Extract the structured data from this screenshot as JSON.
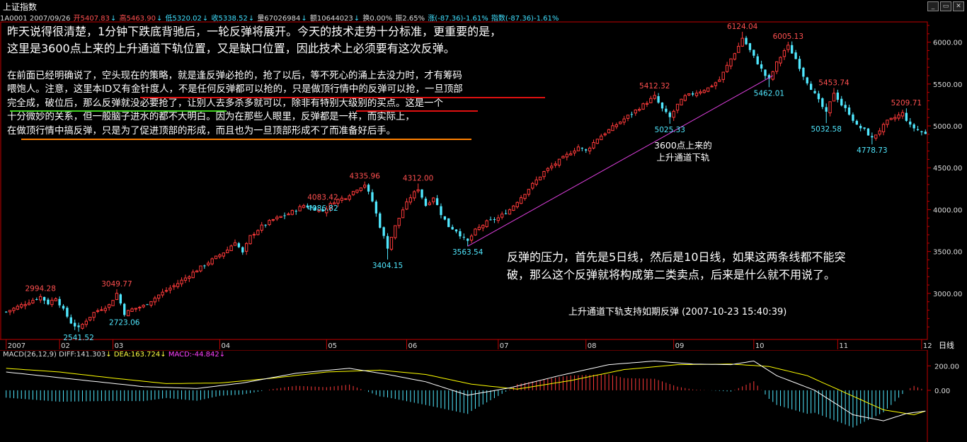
{
  "window": {
    "title": "上证指数"
  },
  "infobar": {
    "code_date": "1A0001 2007/09/26",
    "open": "开5407.83",
    "high": "高5463.90",
    "low": "低5320.02",
    "close": "收5338.52",
    "volume": "量67026984",
    "amount": "额10644023",
    "turnover": "换0.00%",
    "amplitude": "振2.65%",
    "change": "涨(-87.36)-1.61%",
    "index_change": "指数(-87.36)-1.61%"
  },
  "notes": {
    "note1_line1": "昨天说得很清楚，1分钟下跌底背驰后，一轮反弹将展开。今天的技术走势十分标准，更重要的是，",
    "note1_line2": "这里是3600点上来的上升通道下轨位置，又是缺口位置，因此技术上必须要有这次反弹。",
    "note2_line1": "在前面已经明确说了，空头现在的策略，就是逢反弹必抢的，抢了以后，等不死心的涌上去没力时，才有筹码",
    "note2_line2": "喂饱人。注意，这里本ID又有金针度人，不是任何反弹都可以抢的，只是做顶行情中的反弹可以抢，一旦顶部",
    "note2_line3": "完全成，破位后，那么反弹就没必要抢了，让别人去多杀多就可以，除非有特别大级别的买点。这是一个",
    "note2_line4": "十分微妙的关系，但一般脑子进水的都不大明白。因为在那些人眼里，反弹都是一样，而实际上，",
    "note2_line5": "在做顶行情中搞反弹，只是为了促进顶部的形成，而且也为一旦顶部形成不了而准备好后手。",
    "note3_line1": "反弹的压力，首先是5日线，然后是10日线，如果这两条线都不能突",
    "note3_line2": "破，那么这个反弹就将构成第二类卖点，后来是什么就不用说了。",
    "channel_line1": "3600点上来的",
    "channel_line2": "上升通道下轨",
    "caption": "上升通道下轨支持如期反弹  (2007-10-23 15:40:39)"
  },
  "macd_header": {
    "name": "MACD(26,12,9)",
    "diff": "DIFF:141.303",
    "dea": "DEA:163.724",
    "macd": "MACD:-44.842"
  },
  "period_button": "日线",
  "colors": {
    "up": "#ff3a3a",
    "down": "#50e8ff",
    "axis": "#c00000",
    "diff": "#ffffff",
    "dea": "#ffff00",
    "channel": "#e040e0"
  },
  "chart_data": {
    "type": "candlestick",
    "title": "上证指数 日线",
    "ylim": [
      2450,
      6250
    ],
    "y_ticks": [
      3000,
      3500,
      4000,
      4500,
      5000,
      5500,
      6000
    ],
    "y_tick_labels": [
      "3000.00",
      "3500.00",
      "4000.00",
      "4500.00",
      "5000.00",
      "5500.00",
      "6000.00"
    ],
    "x_month_labels": [
      "2007",
      "02",
      "03",
      "04",
      "05",
      "06",
      "07",
      "08",
      "09",
      "10",
      "11",
      "12"
    ],
    "x_month_day_index": [
      0,
      14,
      28,
      56,
      84,
      105,
      129,
      152,
      175,
      196,
      218,
      240
    ],
    "price_annotations": [
      {
        "label": "2994.28",
        "day": 9,
        "value": 2994.28,
        "type": "high"
      },
      {
        "label": "2541.52",
        "day": 19,
        "value": 2541.52,
        "type": "low"
      },
      {
        "label": "3049.77",
        "day": 29,
        "value": 3049.77,
        "type": "high"
      },
      {
        "label": "2723.06",
        "day": 31,
        "value": 2723.06,
        "type": "low"
      },
      {
        "label": "4083.42",
        "day": 83,
        "value": 4083.42,
        "type": "high"
      },
      {
        "label": "4086.82",
        "day": 83,
        "value": 4086.82,
        "type": "low"
      },
      {
        "label": "4335.96",
        "day": 94,
        "value": 4335.96,
        "type": "high"
      },
      {
        "label": "3404.15",
        "day": 100,
        "value": 3404.15,
        "type": "low"
      },
      {
        "label": "4312.00",
        "day": 108,
        "value": 4312.0,
        "type": "high"
      },
      {
        "label": "3563.54",
        "day": 121,
        "value": 3563.54,
        "type": "low"
      },
      {
        "label": "5412.32",
        "day": 170,
        "value": 5412.32,
        "type": "high"
      },
      {
        "label": "5025.33",
        "day": 174,
        "value": 5025.33,
        "type": "low"
      },
      {
        "label": "6124.04",
        "day": 193,
        "value": 6124.04,
        "type": "high"
      },
      {
        "label": "5462.01",
        "day": 200,
        "value": 5462.01,
        "type": "low"
      },
      {
        "label": "6005.13",
        "day": 205,
        "value": 6005.13,
        "type": "high"
      },
      {
        "label": "5032.58",
        "day": 215,
        "value": 5032.58,
        "type": "low"
      },
      {
        "label": "5453.74",
        "day": 217,
        "value": 5453.74,
        "type": "high"
      },
      {
        "label": "4778.73",
        "day": 227,
        "value": 4778.73,
        "type": "low"
      },
      {
        "label": "5209.71",
        "day": 236,
        "value": 5209.71,
        "type": "high"
      }
    ],
    "close_path": [
      [
        0,
        2780
      ],
      [
        3,
        2840
      ],
      [
        6,
        2900
      ],
      [
        9,
        2960
      ],
      [
        11,
        2880
      ],
      [
        13,
        2950
      ],
      [
        15,
        2800
      ],
      [
        17,
        2650
      ],
      [
        19,
        2580
      ],
      [
        21,
        2680
      ],
      [
        23,
        2770
      ],
      [
        25,
        2820
      ],
      [
        27,
        2860
      ],
      [
        29,
        3000
      ],
      [
        31,
        2760
      ],
      [
        33,
        2810
      ],
      [
        36,
        2850
      ],
      [
        40,
        2980
      ],
      [
        45,
        3120
      ],
      [
        50,
        3280
      ],
      [
        55,
        3430
      ],
      [
        58,
        3520
      ],
      [
        60,
        3620
      ],
      [
        62,
        3480
      ],
      [
        64,
        3680
      ],
      [
        67,
        3800
      ],
      [
        70,
        3880
      ],
      [
        74,
        3950
      ],
      [
        78,
        4050
      ],
      [
        81,
        4010
      ],
      [
        83,
        3980
      ],
      [
        86,
        4100
      ],
      [
        89,
        4150
      ],
      [
        92,
        4250
      ],
      [
        94,
        4300
      ],
      [
        96,
        4100
      ],
      [
        98,
        3800
      ],
      [
        100,
        3550
      ],
      [
        102,
        3800
      ],
      [
        104,
        4000
      ],
      [
        106,
        4150
      ],
      [
        108,
        4250
      ],
      [
        110,
        4050
      ],
      [
        112,
        4150
      ],
      [
        114,
        3950
      ],
      [
        116,
        3800
      ],
      [
        118,
        3750
      ],
      [
        120,
        3650
      ],
      [
        121,
        3620
      ],
      [
        123,
        3750
      ],
      [
        126,
        3850
      ],
      [
        129,
        3900
      ],
      [
        132,
        4000
      ],
      [
        135,
        4150
      ],
      [
        138,
        4300
      ],
      [
        141,
        4450
      ],
      [
        144,
        4550
      ],
      [
        147,
        4650
      ],
      [
        150,
        4750
      ],
      [
        152,
        4700
      ],
      [
        155,
        4850
      ],
      [
        158,
        4950
      ],
      [
        161,
        5050
      ],
      [
        164,
        5150
      ],
      [
        167,
        5250
      ],
      [
        170,
        5350
      ],
      [
        172,
        5200
      ],
      [
        174,
        5100
      ],
      [
        176,
        5250
      ],
      [
        178,
        5350
      ],
      [
        181,
        5400
      ],
      [
        184,
        5450
      ],
      [
        187,
        5550
      ],
      [
        190,
        5800
      ],
      [
        192,
        5950
      ],
      [
        193,
        6050
      ],
      [
        195,
        5900
      ],
      [
        197,
        5750
      ],
      [
        199,
        5600
      ],
      [
        200,
        5550
      ],
      [
        202,
        5750
      ],
      [
        204,
        5900
      ],
      [
        205,
        5950
      ],
      [
        207,
        5800
      ],
      [
        209,
        5600
      ],
      [
        211,
        5450
      ],
      [
        213,
        5300
      ],
      [
        215,
        5150
      ],
      [
        217,
        5400
      ],
      [
        219,
        5250
      ],
      [
        221,
        5150
      ],
      [
        223,
        5000
      ],
      [
        225,
        4950
      ],
      [
        227,
        4850
      ],
      [
        229,
        4950
      ],
      [
        231,
        5050
      ],
      [
        233,
        5100
      ],
      [
        235,
        5150
      ],
      [
        237,
        5000
      ],
      [
        239,
        4950
      ],
      [
        241,
        4900
      ]
    ],
    "channel_line": {
      "from": {
        "day": 121,
        "value": 3563.54
      },
      "to": {
        "day": 201,
        "value": 5600
      }
    },
    "macd": {
      "ylim": [
        -400,
        260
      ],
      "y_tick_labels": [
        "200.00",
        "0.00"
      ],
      "y_tick_values": [
        200,
        0
      ],
      "diff": [
        [
          0,
          150
        ],
        [
          12,
          110
        ],
        [
          24,
          70
        ],
        [
          36,
          30
        ],
        [
          50,
          15
        ],
        [
          62,
          60
        ],
        [
          76,
          140
        ],
        [
          90,
          180
        ],
        [
          100,
          130
        ],
        [
          110,
          70
        ],
        [
          121,
          -40
        ],
        [
          132,
          20
        ],
        [
          145,
          120
        ],
        [
          158,
          210
        ],
        [
          170,
          240
        ],
        [
          180,
          215
        ],
        [
          190,
          210
        ],
        [
          196,
          240
        ],
        [
          202,
          120
        ],
        [
          212,
          0
        ],
        [
          222,
          -200
        ],
        [
          230,
          -250
        ],
        [
          236,
          -190
        ],
        [
          241,
          -170
        ]
      ],
      "dea": [
        [
          0,
          180
        ],
        [
          14,
          150
        ],
        [
          28,
          100
        ],
        [
          42,
          55
        ],
        [
          56,
          60
        ],
        [
          70,
          100
        ],
        [
          84,
          150
        ],
        [
          98,
          165
        ],
        [
          110,
          130
        ],
        [
          122,
          50
        ],
        [
          134,
          10
        ],
        [
          148,
          80
        ],
        [
          162,
          170
        ],
        [
          176,
          210
        ],
        [
          190,
          215
        ],
        [
          200,
          195
        ],
        [
          210,
          120
        ],
        [
          220,
          -20
        ],
        [
          230,
          -160
        ],
        [
          238,
          -200
        ],
        [
          241,
          -170
        ]
      ]
    }
  }
}
